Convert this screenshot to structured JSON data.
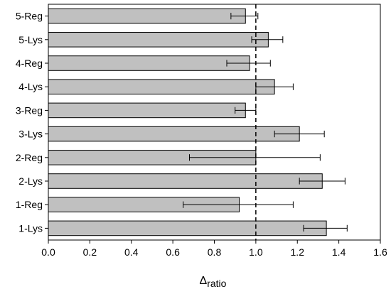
{
  "chart_data": {
    "type": "bar",
    "orientation": "horizontal",
    "categories": [
      "5-Reg",
      "5-Lys",
      "4-Reg",
      "4-Lys",
      "3-Reg",
      "3-Lys",
      "2-Reg",
      "2-Lys",
      "1-Reg",
      "1-Lys"
    ],
    "values": [
      0.95,
      1.06,
      0.97,
      1.09,
      0.95,
      1.21,
      1.0,
      1.32,
      0.92,
      1.34
    ],
    "error_low": [
      0.07,
      0.08,
      0.11,
      0.09,
      0.05,
      0.12,
      0.32,
      0.11,
      0.27,
      0.11
    ],
    "error_high": [
      0.06,
      0.07,
      0.1,
      0.09,
      0.05,
      0.12,
      0.31,
      0.11,
      0.26,
      0.1
    ],
    "xlabel_main": "Δ",
    "xlabel_sub": "ratio",
    "xlim": [
      0.0,
      1.6
    ],
    "xticks": [
      "0.0",
      "0.2",
      "0.4",
      "0.6",
      "0.8",
      "1.0",
      "1.2",
      "1.4",
      "1.6"
    ],
    "reference_line": 1.0,
    "grid": false,
    "bar_color": "#c0c0c0",
    "bar_edge_color": "#000000"
  }
}
